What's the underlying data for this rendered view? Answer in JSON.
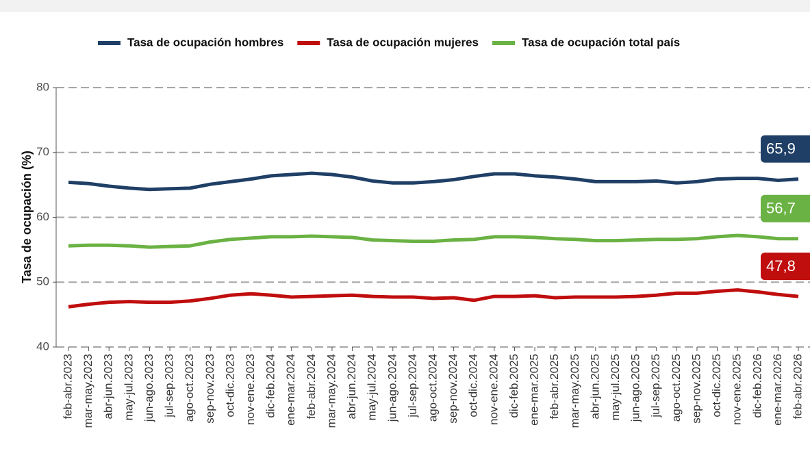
{
  "chart_data": {
    "type": "line",
    "y_label": "Tasa de ocupación (%)",
    "categories": [
      "feb-abr.2023",
      "mar-may.2023",
      "abr-jun.2023",
      "may-jul.2023",
      "jun-ago.2023",
      "jul-sep.2023",
      "ago-oct.2023",
      "sep-nov.2023",
      "oct-dic.2023",
      "nov-ene.2023",
      "dic-feb.2024",
      "ene-mar.2024",
      "feb-abr.2024",
      "mar-may.2024",
      "abr-jun.2024",
      "may-jul.2024",
      "jun-ago.2024",
      "jul-sep.2024",
      "ago-oct.2024",
      "sep-nov.2024",
      "oct-dic.2024",
      "nov-ene.2024",
      "dic-feb.2025",
      "ene-mar.2025",
      "feb-abr.2025",
      "mar-may.2025",
      "abr-jun.2025",
      "may-jul.2025",
      "jun-ago.2025",
      "jul-sep.2025",
      "ago-oct.2025",
      "sep-nov.2025",
      "oct-dic.2025",
      "nov-ene.2025",
      "dic-feb.2026",
      "ene-mar.2026",
      "feb-abr.2026"
    ],
    "series": [
      {
        "name": "Tasa de ocupación hombres",
        "color": "#1f3f66",
        "values": [
          65.4,
          65.2,
          64.8,
          64.5,
          64.3,
          64.4,
          64.5,
          65.1,
          65.5,
          65.9,
          66.4,
          66.6,
          66.8,
          66.6,
          66.2,
          65.6,
          65.3,
          65.3,
          65.5,
          65.8,
          66.3,
          66.7,
          66.7,
          66.4,
          66.2,
          65.9,
          65.5,
          65.5,
          65.5,
          65.6,
          65.3,
          65.5,
          65.9,
          66.0,
          66.0,
          65.7,
          65.9
        ],
        "value_labels": [
          null,
          null,
          null,
          null,
          null,
          null,
          null,
          null,
          null,
          null,
          null,
          null,
          null,
          null,
          null,
          null,
          null,
          null,
          null,
          null,
          null,
          null,
          null,
          null,
          null,
          null,
          null,
          null,
          null,
          null,
          null,
          null,
          null,
          null,
          null,
          null,
          "65,9"
        ]
      },
      {
        "name": "Tasa de ocupación mujeres",
        "color": "#c00d0d",
        "values": [
          46.2,
          46.6,
          46.9,
          47.0,
          46.9,
          46.9,
          47.1,
          47.5,
          48.0,
          48.2,
          48.0,
          47.7,
          47.8,
          47.9,
          48.0,
          47.8,
          47.7,
          47.7,
          47.5,
          47.6,
          47.2,
          47.8,
          47.8,
          47.9,
          47.6,
          47.7,
          47.7,
          47.7,
          47.8,
          48.0,
          48.3,
          48.3,
          48.6,
          48.8,
          48.5,
          48.1,
          47.8
        ],
        "value_labels": [
          null,
          null,
          null,
          null,
          null,
          null,
          null,
          null,
          null,
          null,
          null,
          null,
          null,
          null,
          null,
          null,
          null,
          null,
          null,
          null,
          null,
          null,
          null,
          null,
          null,
          null,
          null,
          null,
          null,
          null,
          null,
          null,
          null,
          null,
          null,
          null,
          "47,8"
        ]
      },
      {
        "name": "Tasa de ocupación total país",
        "color": "#6ab243",
        "values": [
          55.6,
          55.7,
          55.7,
          55.6,
          55.4,
          55.5,
          55.6,
          56.2,
          56.6,
          56.8,
          57.0,
          57.0,
          57.1,
          57.0,
          56.9,
          56.5,
          56.4,
          56.3,
          56.3,
          56.5,
          56.6,
          57.0,
          57.0,
          56.9,
          56.7,
          56.6,
          56.4,
          56.4,
          56.5,
          56.6,
          56.6,
          56.7,
          57.0,
          57.2,
          57.0,
          56.7,
          56.7
        ],
        "value_labels": [
          null,
          null,
          null,
          null,
          null,
          null,
          null,
          null,
          null,
          null,
          null,
          null,
          null,
          null,
          null,
          null,
          null,
          null,
          null,
          null,
          null,
          null,
          null,
          null,
          null,
          null,
          null,
          null,
          null,
          null,
          null,
          null,
          null,
          null,
          null,
          null,
          "56,7"
        ]
      }
    ],
    "ylim": [
      40,
      80
    ],
    "yticks": [
      40,
      50,
      60,
      70,
      80
    ],
    "grid": true,
    "legend": "top"
  }
}
